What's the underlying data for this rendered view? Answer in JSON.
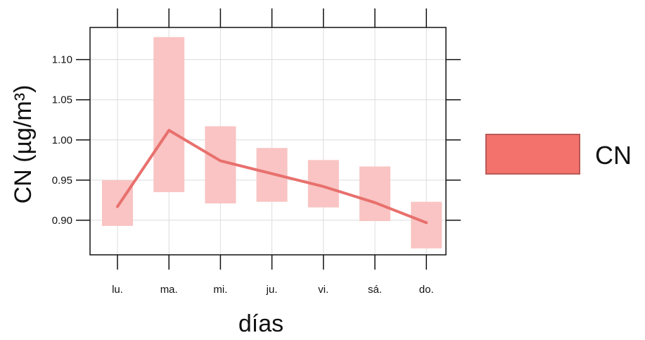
{
  "chart_data": {
    "type": "line",
    "title": "",
    "xlabel": "días",
    "ylabel": "CN (µg/m³)",
    "categories": [
      "lu.",
      "ma.",
      "mi.",
      "ju.",
      "vi.",
      "sá.",
      "do."
    ],
    "series": [
      {
        "name": "CN",
        "values": [
          0.917,
          1.012,
          0.974,
          0.958,
          0.942,
          0.922,
          0.897
        ],
        "lower": [
          0.893,
          0.935,
          0.921,
          0.923,
          0.916,
          0.899,
          0.865
        ],
        "upper": [
          0.95,
          1.128,
          1.017,
          0.99,
          0.975,
          0.967,
          0.923
        ]
      }
    ],
    "yticks": [
      "0.90",
      "0.95",
      "1.00",
      "1.05",
      "1.10"
    ],
    "ylim": [
      0.857,
      1.14
    ],
    "grid": true,
    "legend": "right",
    "colors": {
      "line": "#e8706d",
      "band": "#f9c4c3",
      "legend_fill": "#f3726c",
      "legend_border": "#b85a56"
    }
  }
}
